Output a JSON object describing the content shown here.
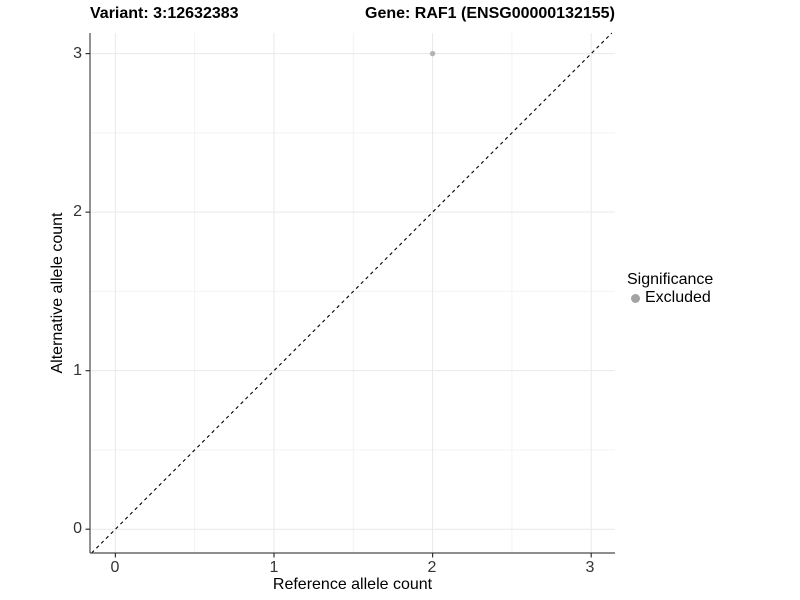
{
  "chart_data": {
    "type": "scatter",
    "title_left": "Variant: 3:12632383",
    "title_right": "Gene: RAF1 (ENSG00000132155)",
    "xlabel": "Reference allele count",
    "ylabel": "Alternative allele count",
    "xlim": [
      -0.16,
      3.15
    ],
    "ylim": [
      -0.15,
      3.13
    ],
    "x_ticks": [
      0,
      1,
      2,
      3
    ],
    "y_ticks": [
      0,
      1,
      2,
      3
    ],
    "x_tick_labels": [
      "0",
      "1",
      "2",
      "3"
    ],
    "y_tick_labels": [
      "0",
      "1",
      "2",
      "3"
    ],
    "x_minor": [
      0.5,
      1.5,
      2.5
    ],
    "y_minor": [
      0.5,
      1.5,
      2.5
    ],
    "grid": true,
    "points": [
      {
        "x": 2,
        "y": 3,
        "series": "Excluded"
      }
    ],
    "reference_line": {
      "type": "identity",
      "style": "dashed",
      "color": "#000000"
    },
    "legend": {
      "title": "Significance",
      "position": "right",
      "entries": [
        {
          "label": "Excluded",
          "color": "#a3a3a3",
          "marker": "circle"
        }
      ]
    },
    "colors": {
      "point": "#b3b3b3",
      "grid_major": "#e9e9e9",
      "grid_minor": "#f3f3f3",
      "axis_line": "#4a4a4a",
      "tick_mark": "#333333",
      "tick_label": "#333333",
      "text": "#000000",
      "background": "#ffffff"
    }
  }
}
